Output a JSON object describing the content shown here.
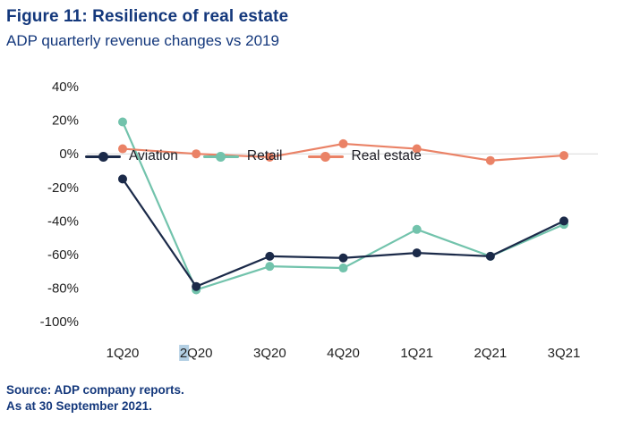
{
  "header": {
    "title": "Figure 11: Resilience of real estate",
    "subtitle": "ADP quarterly revenue changes vs 2019"
  },
  "footer": {
    "source_line1": "Source: ADP company reports.",
    "source_line2": "As at 30 September 2021."
  },
  "colors": {
    "title_blue": "#14387c",
    "aviation": "#1b2a49",
    "retail": "#72c3ac",
    "real_estate": "#ea8266",
    "zero_gridline": "#d8d8d8",
    "axis_text": "#1f1f1f",
    "label_highlight": "#b3cfe3"
  },
  "chart_data": {
    "type": "line",
    "title": "ADP quarterly revenue changes vs 2019",
    "categories": [
      "1Q20",
      "2Q20",
      "3Q20",
      "4Q20",
      "1Q21",
      "2Q21",
      "3Q21"
    ],
    "series": [
      {
        "name": "Aviation",
        "color_key": "aviation",
        "values": [
          -15,
          -79,
          -61,
          -62,
          -59,
          -61,
          -40
        ]
      },
      {
        "name": "Retail",
        "color_key": "retail",
        "values": [
          19,
          -81,
          -67,
          -68,
          -45,
          -61,
          -42
        ]
      },
      {
        "name": "Real estate",
        "color_key": "real_estate",
        "values": [
          3,
          0,
          -2,
          6,
          3,
          -4,
          -1
        ]
      }
    ],
    "y_ticks": [
      40,
      20,
      0,
      -20,
      -40,
      -60,
      -80,
      -100
    ],
    "y_tick_suffix": "%",
    "ylim": [
      -100,
      40
    ],
    "gridline_at": 0,
    "grid": "zero-line-only",
    "legend_position": "top-inside-left",
    "x_label_highlight": {
      "category": "2Q20",
      "char_index": 0
    }
  }
}
